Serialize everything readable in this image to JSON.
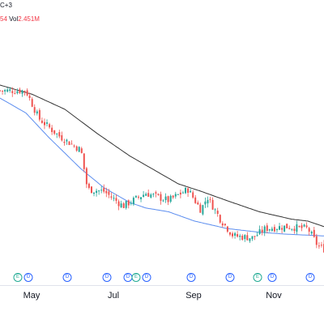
{
  "legend": {
    "top_fragment": "C+3",
    "change_fragment": "54",
    "vol_label": "Vol",
    "vol_value": "2.451M"
  },
  "colors": {
    "up": "#26a69a",
    "down": "#ef5350",
    "ma_fast": "#5b8def",
    "ma_slow": "#333333",
    "dividend": "#2962ff",
    "earnings": "#22ab94"
  },
  "x_axis": {
    "months": [
      "May",
      "Jul",
      "Sep",
      "Nov"
    ]
  },
  "events": [
    {
      "type": "earnings",
      "label": "E"
    },
    {
      "type": "dividend",
      "label": "D"
    },
    {
      "type": "dividend",
      "label": "D"
    },
    {
      "type": "dividend",
      "label": "D"
    },
    {
      "type": "dividend",
      "label": "D"
    },
    {
      "type": "earnings",
      "label": "E"
    },
    {
      "type": "dividend",
      "label": "D"
    },
    {
      "type": "dividend",
      "label": "D"
    },
    {
      "type": "dividend",
      "label": "D"
    },
    {
      "type": "earnings",
      "label": "E"
    },
    {
      "type": "dividend",
      "label": "D"
    },
    {
      "type": "dividend",
      "label": "D"
    }
  ],
  "chart_data": {
    "type": "candlestick",
    "grid": false,
    "legend": "top-left",
    "ylim": [
      0,
      100
    ],
    "ma_fast_anchors": [
      [
        0,
        83
      ],
      [
        0.08,
        75
      ],
      [
        0.15,
        62
      ],
      [
        0.25,
        45
      ],
      [
        0.32,
        35
      ],
      [
        0.4,
        27
      ],
      [
        0.45,
        24
      ],
      [
        0.52,
        22
      ],
      [
        0.6,
        17
      ],
      [
        0.7,
        13
      ],
      [
        0.8,
        11
      ],
      [
        0.88,
        10
      ],
      [
        1.0,
        9
      ]
    ],
    "ma_slow_anchors": [
      [
        0,
        90
      ],
      [
        0.1,
        85
      ],
      [
        0.2,
        77
      ],
      [
        0.3,
        64
      ],
      [
        0.4,
        52
      ],
      [
        0.5,
        42
      ],
      [
        0.55,
        37
      ],
      [
        0.62,
        33
      ],
      [
        0.7,
        28
      ],
      [
        0.8,
        22
      ],
      [
        0.9,
        18
      ],
      [
        0.95,
        17
      ],
      [
        1.0,
        14
      ]
    ],
    "close_anchors": [
      [
        0,
        87
      ],
      [
        0.08,
        87
      ],
      [
        0.12,
        72
      ],
      [
        0.18,
        63
      ],
      [
        0.25,
        55
      ],
      [
        0.27,
        34
      ],
      [
        0.32,
        33
      ],
      [
        0.38,
        25
      ],
      [
        0.45,
        32
      ],
      [
        0.52,
        28
      ],
      [
        0.58,
        34
      ],
      [
        0.62,
        23
      ],
      [
        0.64,
        30
      ],
      [
        0.68,
        18
      ],
      [
        0.72,
        9
      ],
      [
        0.78,
        8
      ],
      [
        0.82,
        13
      ],
      [
        0.88,
        14
      ],
      [
        0.95,
        13
      ],
      [
        0.98,
        4
      ],
      [
        1.0,
        2
      ]
    ]
  }
}
